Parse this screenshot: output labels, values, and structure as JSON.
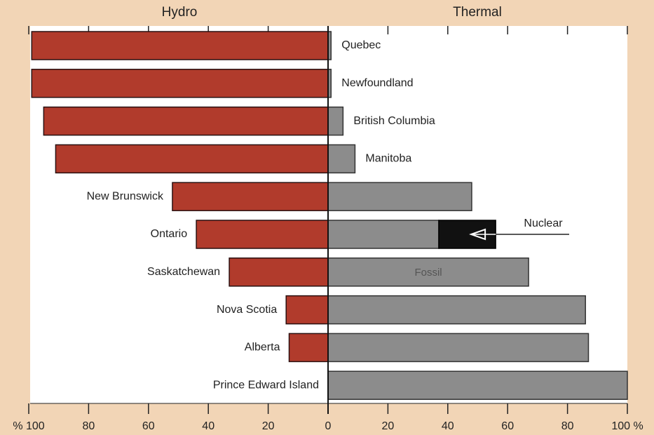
{
  "chart_data": {
    "type": "diverging-bar",
    "left_header": "Hydro",
    "right_header": "Thermal",
    "categories": [
      "Quebec",
      "Newfoundland",
      "British Columbia",
      "Manitoba",
      "New Brunswick",
      "Ontario",
      "Saskatchewan",
      "Nova Scotia",
      "Alberta",
      "Prince Edward Island"
    ],
    "series": [
      {
        "name": "Hydro",
        "color": "#b13b2c",
        "side": "left",
        "values": [
          99,
          99,
          95,
          91,
          52,
          44,
          33,
          14,
          13,
          0
        ]
      },
      {
        "name": "Fossil",
        "color": "#8c8c8c",
        "side": "right",
        "values": [
          1,
          1,
          5,
          9,
          48,
          37,
          67,
          86,
          87,
          100
        ]
      },
      {
        "name": "Nuclear",
        "color": "#111111",
        "side": "right",
        "values": [
          null,
          null,
          null,
          null,
          null,
          19,
          null,
          null,
          null,
          null
        ]
      }
    ],
    "annotations": [
      "Nuclear",
      "Fossil"
    ],
    "left_xlim": [
      0,
      100
    ],
    "right_xlim": [
      0,
      100
    ],
    "left_xticks": [
      {
        "value": 100,
        "label": "% 100"
      },
      80,
      60,
      40,
      20
    ],
    "right_xticks": [
      0,
      20,
      40,
      60,
      80,
      {
        "value": 100,
        "label": "100 %"
      }
    ]
  }
}
